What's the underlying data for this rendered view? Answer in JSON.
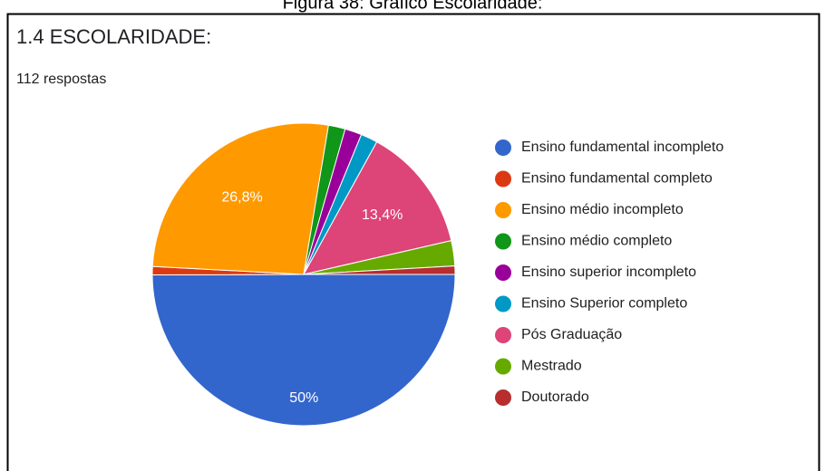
{
  "caption": "Figura 38: Gráfico Escolaridade:",
  "chart_data": {
    "type": "pie",
    "title": "1.4 ESCOLARIDADE:",
    "subtitle": "112 respostas",
    "categories": [
      "Ensino fundamental incompleto",
      "Ensino fundamental completo",
      "Ensino médio incompleto",
      "Ensino médio completo",
      "Ensino superior incompleto",
      "Ensino Superior completo",
      "Pós Graduação",
      "Mestrado",
      "Doutorado"
    ],
    "values": [
      50,
      0.9,
      26.8,
      1.8,
      1.8,
      1.8,
      13.4,
      2.7,
      0.9
    ],
    "value_labels": [
      "50%",
      null,
      "26,8%",
      null,
      null,
      null,
      "13,4%",
      null,
      null
    ],
    "colors": [
      "#3366cc",
      "#dc3912",
      "#ff9900",
      "#109618",
      "#990099",
      "#0099c6",
      "#dd4477",
      "#66aa00",
      "#b82e2e"
    ],
    "legend": "right"
  }
}
